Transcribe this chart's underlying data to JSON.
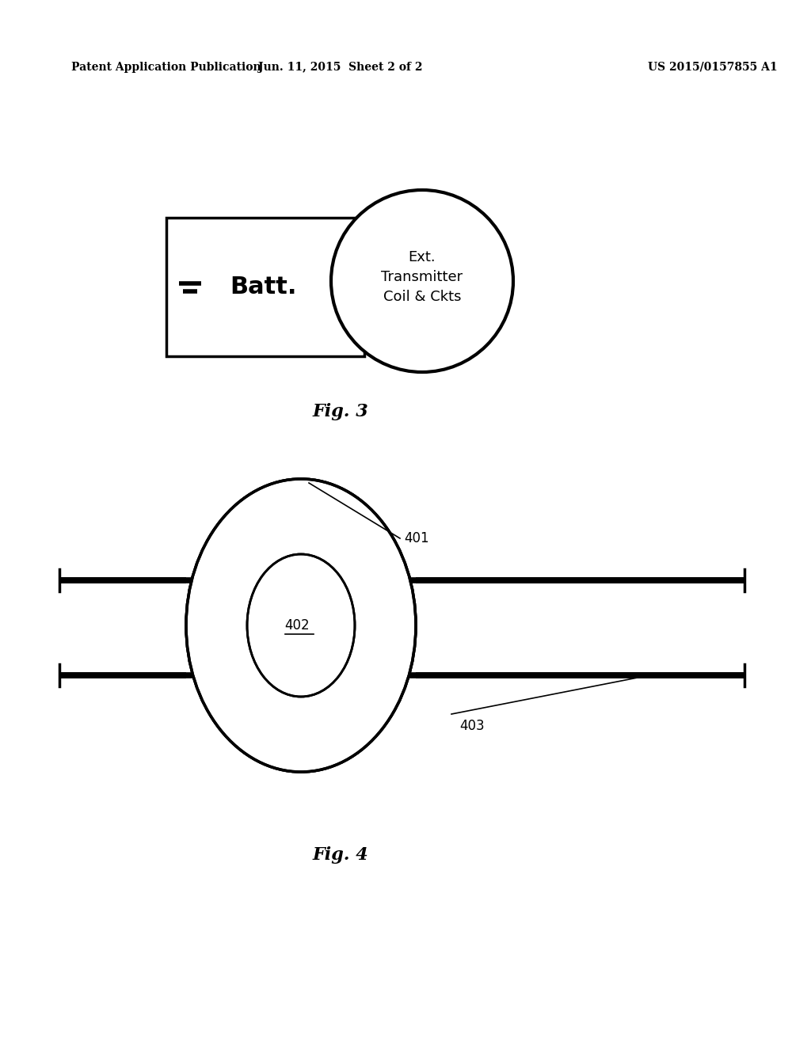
{
  "bg_color": "#ffffff",
  "line_color": "#000000",
  "header_left": "Patent Application Publication",
  "header_mid": "Jun. 11, 2015  Sheet 2 of 2",
  "header_right": "US 2015/0157855 A1",
  "fig3_label": "Fig. 3",
  "fig4_label": "Fig. 4",
  "batt_text": "Batt.",
  "coil_text": "Ext.\nTransmitter\nCoil & Ckts",
  "label_401": "401",
  "label_402": "402",
  "label_403": "403"
}
